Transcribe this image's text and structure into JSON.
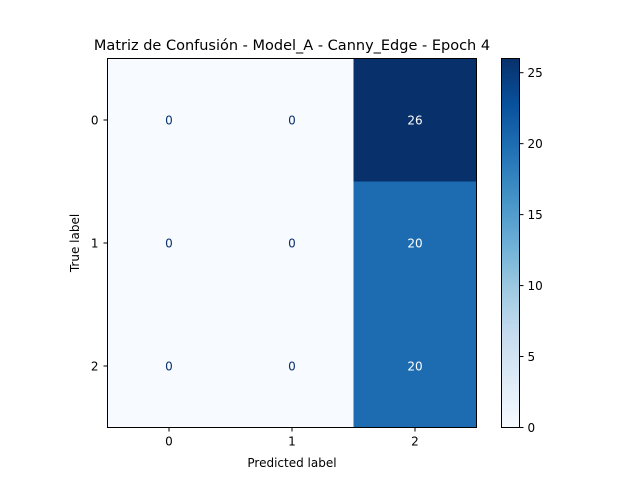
{
  "chart_data": {
    "type": "heatmap",
    "title": "Matriz de Confusión - Model_A - Canny_Edge - Epoch 4",
    "xlabel": "Predicted label",
    "ylabel": "True label",
    "x_categories": [
      "0",
      "1",
      "2"
    ],
    "y_categories": [
      "0",
      "1",
      "2"
    ],
    "values": [
      [
        0,
        0,
        26
      ],
      [
        0,
        0,
        20
      ],
      [
        0,
        0,
        20
      ]
    ],
    "colormap": "Blues",
    "colorbar": {
      "range": [
        0,
        26
      ],
      "ticks": [
        0,
        5,
        10,
        15,
        20,
        25
      ]
    },
    "colors": {
      "low": "#f7fbff",
      "high": "#08306b",
      "text_on_light": "#08306b",
      "text_on_dark": "#ffffff"
    }
  }
}
